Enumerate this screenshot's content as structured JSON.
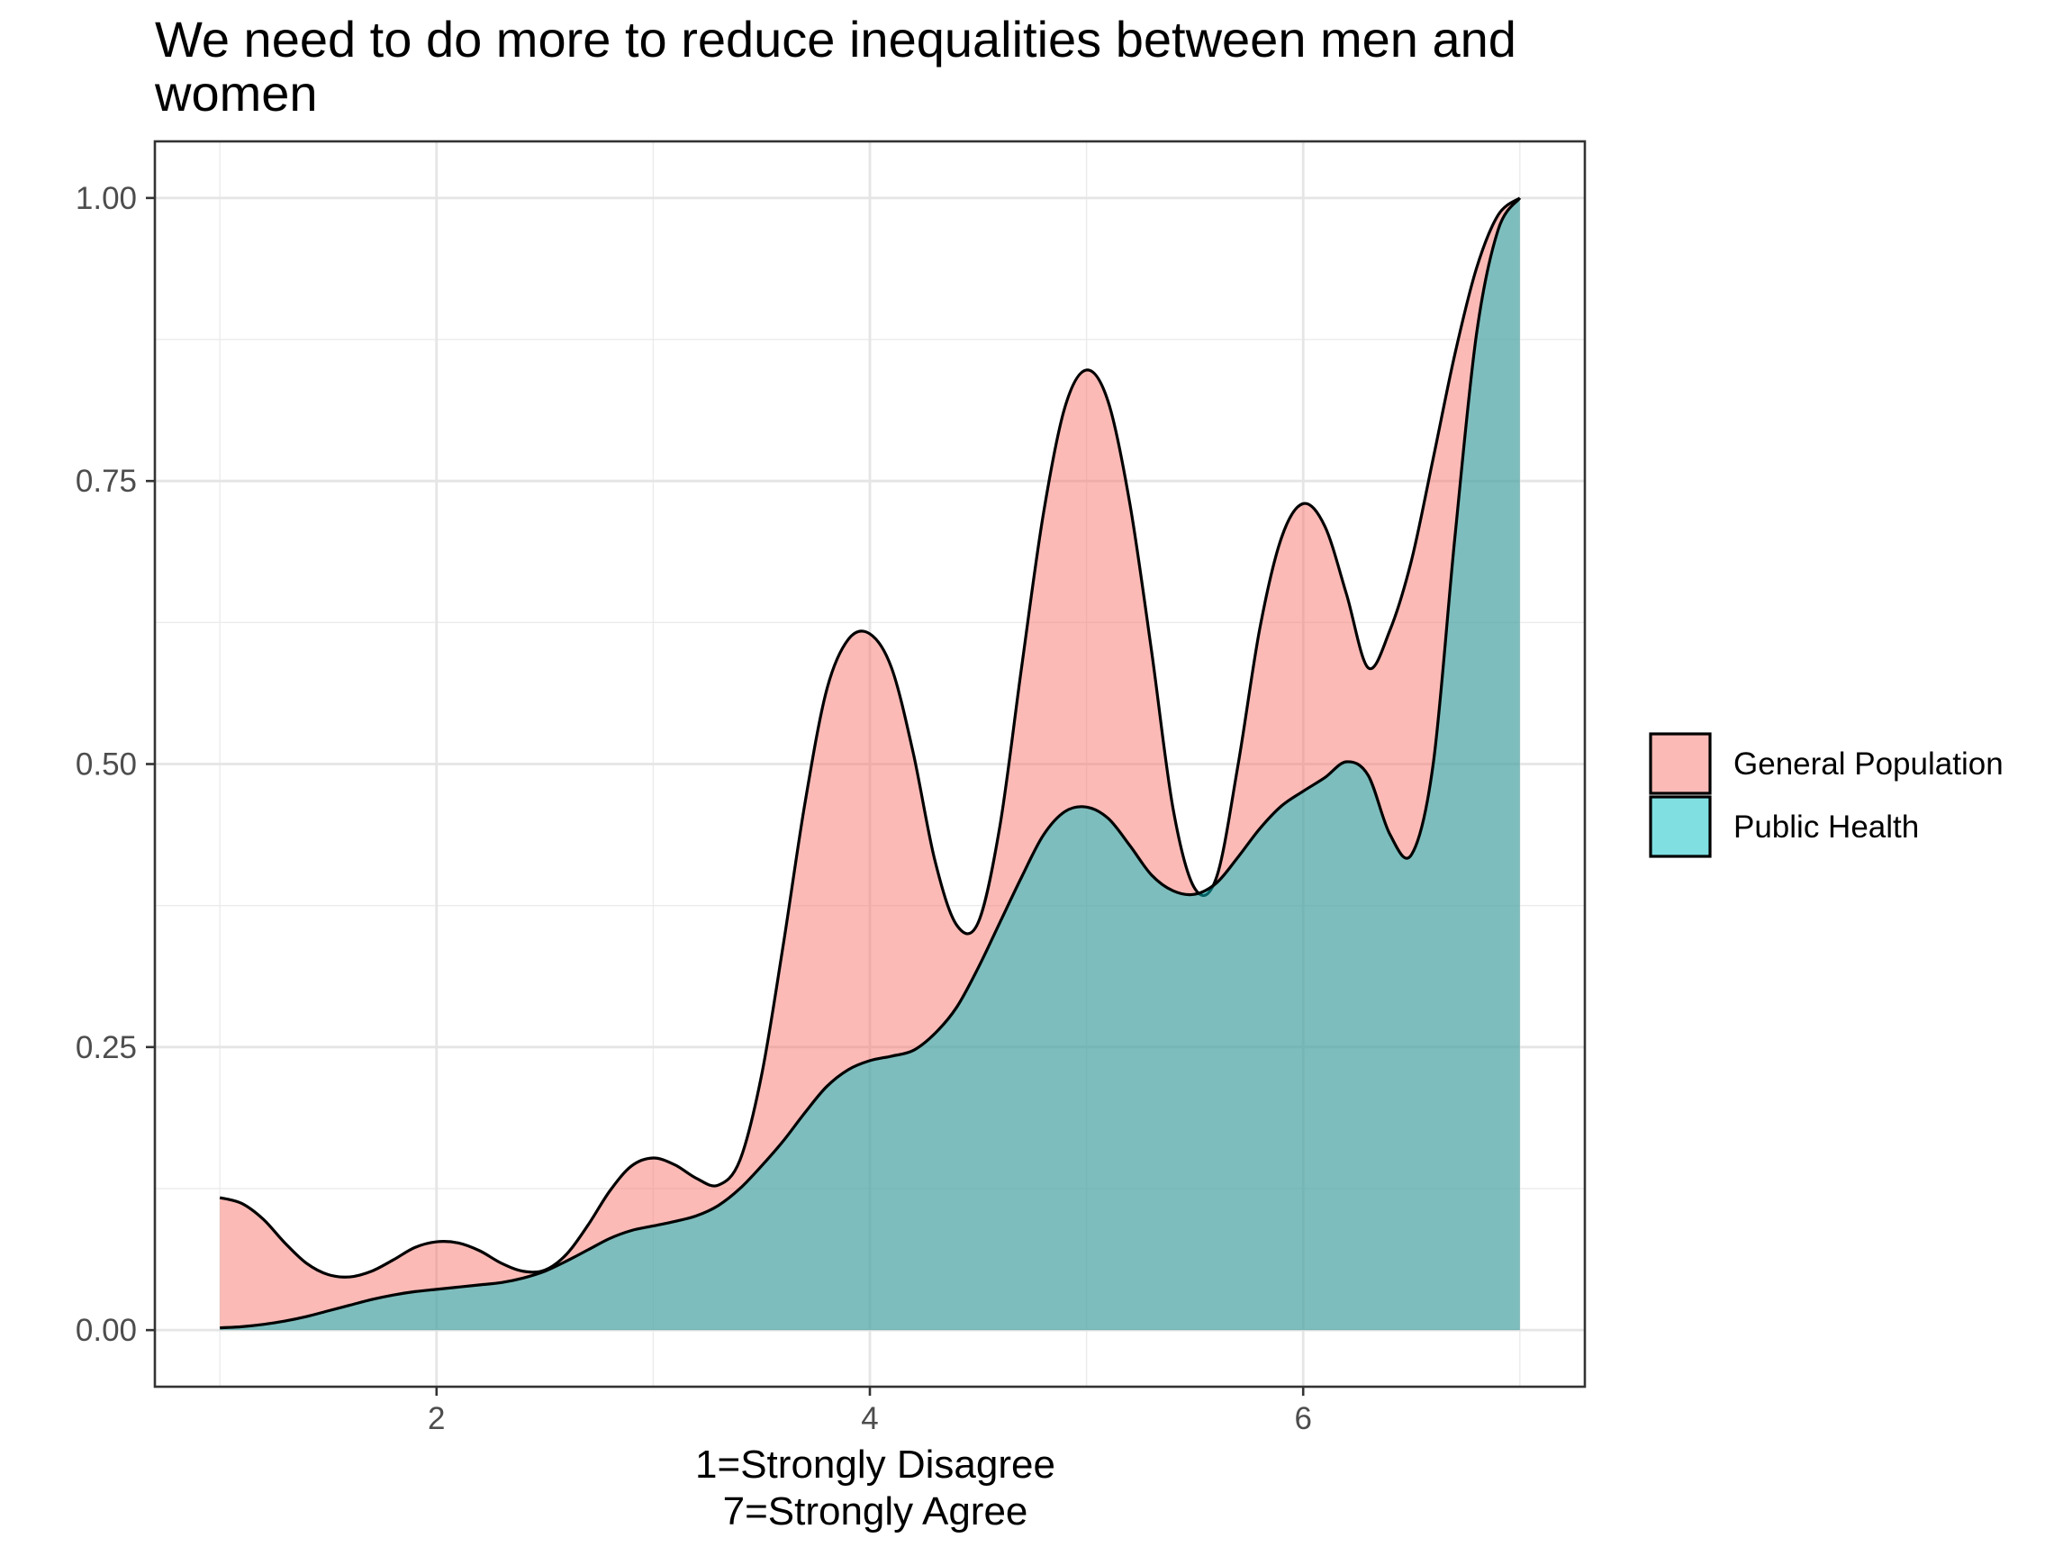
{
  "chart_data": {
    "type": "area",
    "title": "We need to do more to reduce inequalities between men and women",
    "xlabel": "1=Strongly Disagree\n7=Strongly Agree",
    "ylabel": "",
    "xlim": [
      0.7,
      7.3
    ],
    "ylim": [
      -0.05,
      1.05
    ],
    "x_ticks": [
      2,
      4,
      6
    ],
    "x_tick_labels": [
      "2",
      "4",
      "6"
    ],
    "y_ticks": [
      0,
      0.25,
      0.5,
      0.75,
      1
    ],
    "y_tick_labels": [
      "0.00",
      "0.25",
      "0.50",
      "0.75",
      "1.00"
    ],
    "grid": true,
    "legend_position": "right",
    "series": [
      {
        "name": "General Population",
        "color": "#F8766D",
        "points": [
          [
            1.0,
            0.117
          ],
          [
            1.1,
            0.112
          ],
          [
            1.2,
            0.098
          ],
          [
            1.3,
            0.077
          ],
          [
            1.4,
            0.059
          ],
          [
            1.5,
            0.049
          ],
          [
            1.6,
            0.047
          ],
          [
            1.7,
            0.052
          ],
          [
            1.8,
            0.062
          ],
          [
            1.9,
            0.073
          ],
          [
            2.0,
            0.078
          ],
          [
            2.1,
            0.077
          ],
          [
            2.2,
            0.07
          ],
          [
            2.3,
            0.059
          ],
          [
            2.4,
            0.052
          ],
          [
            2.5,
            0.053
          ],
          [
            2.6,
            0.067
          ],
          [
            2.7,
            0.093
          ],
          [
            2.8,
            0.123
          ],
          [
            2.9,
            0.145
          ],
          [
            3.0,
            0.152
          ],
          [
            3.1,
            0.146
          ],
          [
            3.2,
            0.134
          ],
          [
            3.3,
            0.128
          ],
          [
            3.4,
            0.15
          ],
          [
            3.5,
            0.225
          ],
          [
            3.6,
            0.34
          ],
          [
            3.7,
            0.465
          ],
          [
            3.8,
            0.565
          ],
          [
            3.9,
            0.61
          ],
          [
            4.0,
            0.615
          ],
          [
            4.1,
            0.585
          ],
          [
            4.2,
            0.51
          ],
          [
            4.3,
            0.415
          ],
          [
            4.4,
            0.358
          ],
          [
            4.5,
            0.36
          ],
          [
            4.6,
            0.445
          ],
          [
            4.7,
            0.585
          ],
          [
            4.8,
            0.72
          ],
          [
            4.9,
            0.815
          ],
          [
            5.0,
            0.848
          ],
          [
            5.1,
            0.82
          ],
          [
            5.2,
            0.73
          ],
          [
            5.3,
            0.6
          ],
          [
            5.4,
            0.46
          ],
          [
            5.5,
            0.39
          ],
          [
            5.6,
            0.4
          ],
          [
            5.7,
            0.5
          ],
          [
            5.8,
            0.62
          ],
          [
            5.9,
            0.7
          ],
          [
            6.0,
            0.73
          ],
          [
            6.1,
            0.71
          ],
          [
            6.2,
            0.65
          ],
          [
            6.3,
            0.585
          ],
          [
            6.4,
            0.618
          ],
          [
            6.5,
            0.68
          ],
          [
            6.6,
            0.77
          ],
          [
            6.7,
            0.862
          ],
          [
            6.8,
            0.938
          ],
          [
            6.9,
            0.985
          ],
          [
            7.0,
            1.0
          ]
        ]
      },
      {
        "name": "Public Health",
        "color": "#00BFC4",
        "points": [
          [
            1.0,
            0.002
          ],
          [
            1.1,
            0.003
          ],
          [
            1.2,
            0.005
          ],
          [
            1.3,
            0.008
          ],
          [
            1.4,
            0.012
          ],
          [
            1.5,
            0.017
          ],
          [
            1.6,
            0.022
          ],
          [
            1.7,
            0.027
          ],
          [
            1.8,
            0.031
          ],
          [
            1.9,
            0.034
          ],
          [
            2.0,
            0.036
          ],
          [
            2.1,
            0.038
          ],
          [
            2.2,
            0.04
          ],
          [
            2.3,
            0.042
          ],
          [
            2.4,
            0.046
          ],
          [
            2.5,
            0.052
          ],
          [
            2.6,
            0.061
          ],
          [
            2.7,
            0.071
          ],
          [
            2.8,
            0.081
          ],
          [
            2.9,
            0.088
          ],
          [
            3.0,
            0.092
          ],
          [
            3.1,
            0.096
          ],
          [
            3.2,
            0.101
          ],
          [
            3.3,
            0.11
          ],
          [
            3.4,
            0.125
          ],
          [
            3.5,
            0.145
          ],
          [
            3.6,
            0.167
          ],
          [
            3.7,
            0.192
          ],
          [
            3.8,
            0.215
          ],
          [
            3.9,
            0.23
          ],
          [
            4.0,
            0.238
          ],
          [
            4.1,
            0.242
          ],
          [
            4.2,
            0.247
          ],
          [
            4.3,
            0.262
          ],
          [
            4.4,
            0.285
          ],
          [
            4.5,
            0.32
          ],
          [
            4.6,
            0.36
          ],
          [
            4.7,
            0.4
          ],
          [
            4.8,
            0.437
          ],
          [
            4.9,
            0.458
          ],
          [
            5.0,
            0.462
          ],
          [
            5.1,
            0.452
          ],
          [
            5.2,
            0.428
          ],
          [
            5.3,
            0.402
          ],
          [
            5.4,
            0.388
          ],
          [
            5.5,
            0.385
          ],
          [
            5.6,
            0.395
          ],
          [
            5.7,
            0.418
          ],
          [
            5.8,
            0.443
          ],
          [
            5.9,
            0.463
          ],
          [
            6.0,
            0.476
          ],
          [
            6.1,
            0.488
          ],
          [
            6.2,
            0.502
          ],
          [
            6.3,
            0.49
          ],
          [
            6.4,
            0.438
          ],
          [
            6.5,
            0.42
          ],
          [
            6.6,
            0.5
          ],
          [
            6.7,
            0.7
          ],
          [
            6.8,
            0.88
          ],
          [
            6.9,
            0.972
          ],
          [
            7.0,
            1.0
          ]
        ]
      }
    ]
  }
}
